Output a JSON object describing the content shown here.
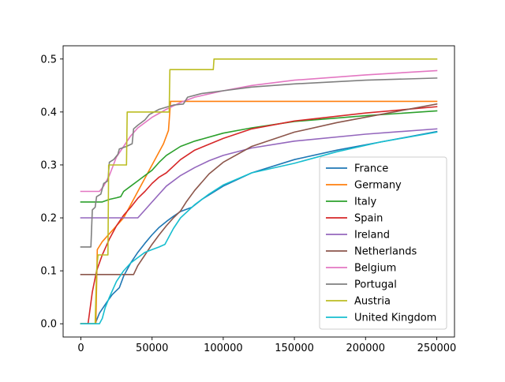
{
  "chart_data": {
    "type": "line",
    "title": "",
    "xlabel": "",
    "ylabel": "",
    "xlim": [
      -12500,
      262500
    ],
    "ylim": [
      -0.025,
      0.525
    ],
    "xticks": [
      0,
      50000,
      100000,
      150000,
      200000,
      250000
    ],
    "xtick_labels": [
      "0",
      "50000",
      "100000",
      "150000",
      "200000",
      "250000"
    ],
    "yticks": [
      0.0,
      0.1,
      0.2,
      0.3,
      0.4,
      0.5
    ],
    "ytick_labels": [
      "0.0",
      "0.1",
      "0.2",
      "0.3",
      "0.4",
      "0.5"
    ],
    "grid": false,
    "legend_position": "lower-right",
    "series": [
      {
        "name": "France",
        "color": "#1f77b4",
        "points": [
          [
            0,
            0
          ],
          [
            10000,
            0
          ],
          [
            13000,
            0.02
          ],
          [
            18000,
            0.04
          ],
          [
            22000,
            0.055
          ],
          [
            27000,
            0.068
          ],
          [
            30000,
            0.09
          ],
          [
            35000,
            0.115
          ],
          [
            40000,
            0.135
          ],
          [
            45000,
            0.152
          ],
          [
            50000,
            0.168
          ],
          [
            55000,
            0.182
          ],
          [
            60000,
            0.193
          ],
          [
            65000,
            0.203
          ],
          [
            70000,
            0.212
          ],
          [
            78000,
            0.22
          ],
          [
            85000,
            0.235
          ],
          [
            100000,
            0.26
          ],
          [
            120000,
            0.285
          ],
          [
            150000,
            0.31
          ],
          [
            180000,
            0.328
          ],
          [
            210000,
            0.343
          ],
          [
            250000,
            0.363
          ]
        ]
      },
      {
        "name": "Germany",
        "color": "#ff7f0e",
        "points": [
          [
            0,
            0
          ],
          [
            10500,
            0
          ],
          [
            11500,
            0.14
          ],
          [
            15000,
            0.155
          ],
          [
            20000,
            0.17
          ],
          [
            30000,
            0.2
          ],
          [
            40000,
            0.25
          ],
          [
            50000,
            0.3
          ],
          [
            58000,
            0.34
          ],
          [
            61500,
            0.365
          ],
          [
            63000,
            0.42
          ],
          [
            250000,
            0.42
          ]
        ]
      },
      {
        "name": "Italy",
        "color": "#2ca02c",
        "points": [
          [
            0,
            0.23
          ],
          [
            15000,
            0.23
          ],
          [
            20000,
            0.235
          ],
          [
            25000,
            0.238
          ],
          [
            28000,
            0.24
          ],
          [
            30000,
            0.25
          ],
          [
            35000,
            0.26
          ],
          [
            40000,
            0.27
          ],
          [
            45000,
            0.28
          ],
          [
            50000,
            0.29
          ],
          [
            55000,
            0.305
          ],
          [
            60000,
            0.318
          ],
          [
            70000,
            0.335
          ],
          [
            80000,
            0.345
          ],
          [
            100000,
            0.36
          ],
          [
            120000,
            0.37
          ],
          [
            150000,
            0.382
          ],
          [
            200000,
            0.393
          ],
          [
            250000,
            0.402
          ]
        ]
      },
      {
        "name": "Spain",
        "color": "#d62728",
        "points": [
          [
            0,
            0
          ],
          [
            5000,
            0
          ],
          [
            8000,
            0.06
          ],
          [
            11000,
            0.1
          ],
          [
            15000,
            0.13
          ],
          [
            20000,
            0.16
          ],
          [
            25000,
            0.185
          ],
          [
            30000,
            0.205
          ],
          [
            35000,
            0.22
          ],
          [
            40000,
            0.237
          ],
          [
            45000,
            0.25
          ],
          [
            50000,
            0.265
          ],
          [
            55000,
            0.277
          ],
          [
            60000,
            0.285
          ],
          [
            70000,
            0.31
          ],
          [
            80000,
            0.328
          ],
          [
            100000,
            0.35
          ],
          [
            120000,
            0.368
          ],
          [
            150000,
            0.383
          ],
          [
            200000,
            0.398
          ],
          [
            250000,
            0.41
          ]
        ]
      },
      {
        "name": "Ireland",
        "color": "#9467bd",
        "points": [
          [
            0,
            0.2
          ],
          [
            40000,
            0.2
          ],
          [
            45000,
            0.215
          ],
          [
            50000,
            0.23
          ],
          [
            55000,
            0.245
          ],
          [
            60000,
            0.26
          ],
          [
            70000,
            0.28
          ],
          [
            80000,
            0.295
          ],
          [
            90000,
            0.308
          ],
          [
            100000,
            0.318
          ],
          [
            120000,
            0.332
          ],
          [
            150000,
            0.345
          ],
          [
            200000,
            0.358
          ],
          [
            250000,
            0.368
          ]
        ]
      },
      {
        "name": "Netherlands",
        "color": "#8c564b",
        "points": [
          [
            0,
            0.093
          ],
          [
            37000,
            0.093
          ],
          [
            40000,
            0.11
          ],
          [
            45000,
            0.13
          ],
          [
            50000,
            0.15
          ],
          [
            55000,
            0.168
          ],
          [
            60000,
            0.185
          ],
          [
            65000,
            0.2
          ],
          [
            70000,
            0.213
          ],
          [
            74000,
            0.23
          ],
          [
            80000,
            0.252
          ],
          [
            90000,
            0.283
          ],
          [
            100000,
            0.305
          ],
          [
            120000,
            0.335
          ],
          [
            150000,
            0.362
          ],
          [
            180000,
            0.38
          ],
          [
            210000,
            0.395
          ],
          [
            250000,
            0.415
          ]
        ]
      },
      {
        "name": "Belgium",
        "color": "#e377c2",
        "points": [
          [
            0,
            0.25
          ],
          [
            13000,
            0.25
          ],
          [
            16000,
            0.26
          ],
          [
            20000,
            0.28
          ],
          [
            25000,
            0.315
          ],
          [
            30000,
            0.335
          ],
          [
            35000,
            0.355
          ],
          [
            40000,
            0.37
          ],
          [
            50000,
            0.39
          ],
          [
            60000,
            0.405
          ],
          [
            70000,
            0.418
          ],
          [
            80000,
            0.428
          ],
          [
            100000,
            0.44
          ],
          [
            120000,
            0.45
          ],
          [
            150000,
            0.46
          ],
          [
            200000,
            0.47
          ],
          [
            250000,
            0.478
          ]
        ]
      },
      {
        "name": "Portugal",
        "color": "#7f7f7f",
        "points": [
          [
            0,
            0.145
          ],
          [
            7000,
            0.145
          ],
          [
            8000,
            0.215
          ],
          [
            10000,
            0.22
          ],
          [
            11000,
            0.24
          ],
          [
            14000,
            0.245
          ],
          [
            16000,
            0.265
          ],
          [
            19000,
            0.27
          ],
          [
            20000,
            0.305
          ],
          [
            23000,
            0.31
          ],
          [
            26000,
            0.32
          ],
          [
            27000,
            0.33
          ],
          [
            32000,
            0.335
          ],
          [
            36000,
            0.34
          ],
          [
            37000,
            0.368
          ],
          [
            40000,
            0.375
          ],
          [
            45000,
            0.385
          ],
          [
            48000,
            0.395
          ],
          [
            55000,
            0.405
          ],
          [
            65000,
            0.413
          ],
          [
            72000,
            0.415
          ],
          [
            75000,
            0.428
          ],
          [
            85000,
            0.435
          ],
          [
            100000,
            0.44
          ],
          [
            120000,
            0.447
          ],
          [
            150000,
            0.453
          ],
          [
            200000,
            0.46
          ],
          [
            250000,
            0.464
          ]
        ]
      },
      {
        "name": "Austria",
        "color": "#bcbd22",
        "points": [
          [
            0,
            0
          ],
          [
            10000,
            0
          ],
          [
            11000,
            0.1
          ],
          [
            12000,
            0.13
          ],
          [
            19000,
            0.13
          ],
          [
            19500,
            0.3
          ],
          [
            32000,
            0.3
          ],
          [
            32500,
            0.4
          ],
          [
            62000,
            0.4
          ],
          [
            62500,
            0.48
          ],
          [
            93000,
            0.48
          ],
          [
            93500,
            0.5
          ],
          [
            250000,
            0.5
          ]
        ]
      },
      {
        "name": "United Kingdom",
        "color": "#17becf",
        "points": [
          [
            0,
            0
          ],
          [
            13000,
            0
          ],
          [
            15000,
            0.01
          ],
          [
            17000,
            0.03
          ],
          [
            20000,
            0.05
          ],
          [
            25000,
            0.08
          ],
          [
            30000,
            0.1
          ],
          [
            35000,
            0.115
          ],
          [
            40000,
            0.125
          ],
          [
            45000,
            0.135
          ],
          [
            50000,
            0.14
          ],
          [
            55000,
            0.145
          ],
          [
            59000,
            0.15
          ],
          [
            62000,
            0.165
          ],
          [
            65000,
            0.18
          ],
          [
            70000,
            0.2
          ],
          [
            80000,
            0.225
          ],
          [
            90000,
            0.245
          ],
          [
            100000,
            0.262
          ],
          [
            120000,
            0.285
          ],
          [
            150000,
            0.303
          ],
          [
            180000,
            0.325
          ],
          [
            210000,
            0.343
          ],
          [
            250000,
            0.362
          ]
        ]
      }
    ]
  }
}
